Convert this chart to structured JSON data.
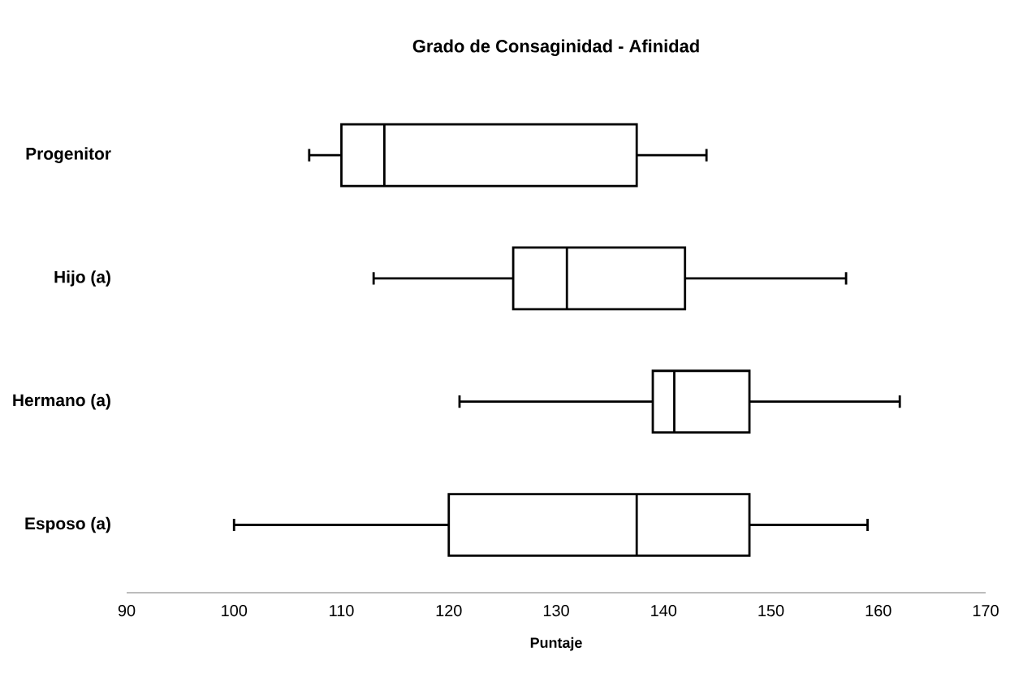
{
  "chart_data": {
    "type": "box",
    "title": "Grado de Consaginidad - Afinidad",
    "xlabel": "Puntaje",
    "orientation": "horizontal",
    "categories": [
      "Progenitor",
      "Hijo (a)",
      "Hermano (a)",
      "Esposo (a)"
    ],
    "boxes": [
      {
        "low": 107,
        "q1": 110,
        "median": 114,
        "q3": 137.5,
        "high": 144
      },
      {
        "low": 113,
        "q1": 126,
        "median": 131,
        "q3": 142,
        "high": 157
      },
      {
        "low": 121,
        "q1": 139,
        "median": 141,
        "q3": 148,
        "high": 162
      },
      {
        "low": 100,
        "q1": 120,
        "median": 137.5,
        "q3": 148,
        "high": 159
      }
    ],
    "xlim": [
      90,
      170
    ],
    "xticks": [
      90,
      100,
      110,
      120,
      130,
      140,
      150,
      160,
      170
    ],
    "grid": false
  }
}
